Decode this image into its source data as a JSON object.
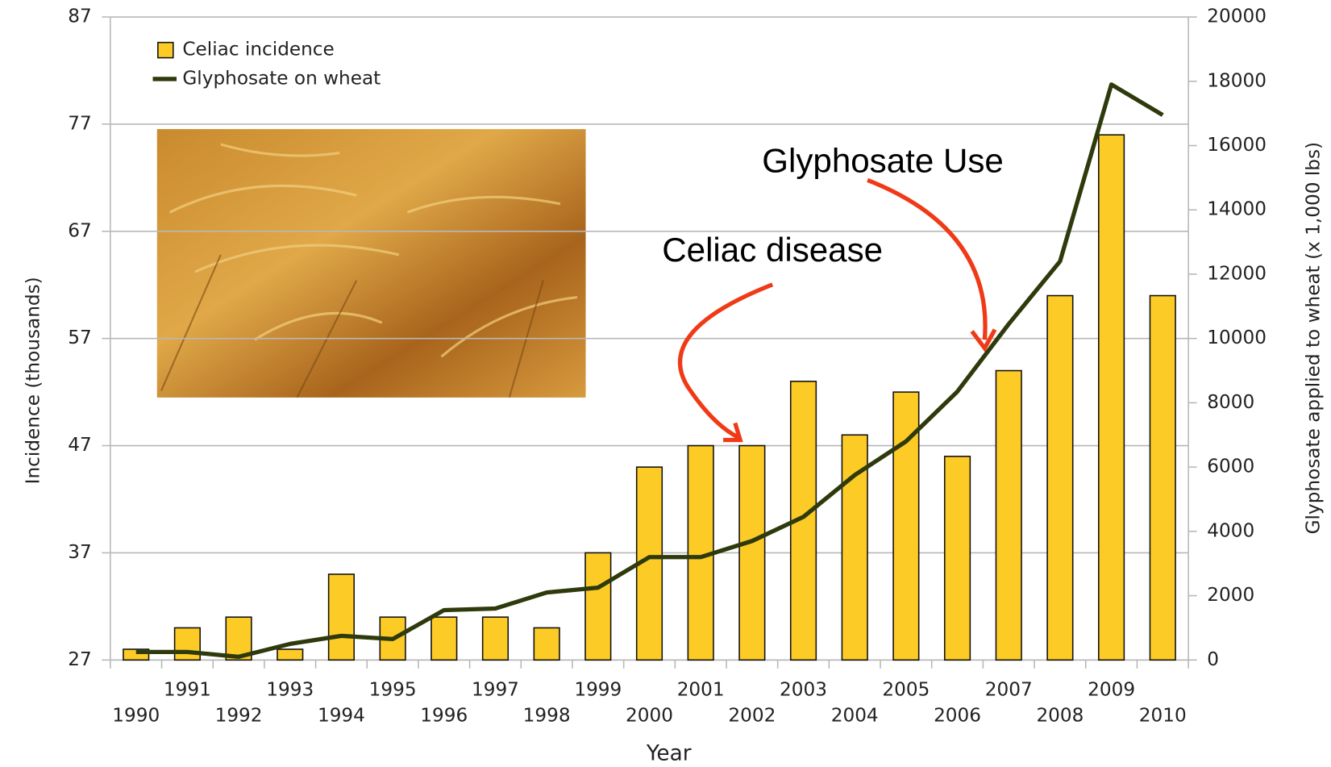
{
  "chart_data": {
    "type": "bar",
    "x_label": "Year",
    "y_label": "Incidence (thousands)",
    "y2_label": "Glyphosate applied to wheat (x 1,000 lbs)",
    "categories": [
      "1990",
      "1991",
      "1992",
      "1993",
      "1994",
      "1995",
      "1996",
      "1997",
      "1998",
      "1999",
      "2000",
      "2001",
      "2002",
      "2003",
      "2004",
      "2005",
      "2006",
      "2007",
      "2008",
      "2009",
      "2010"
    ],
    "series": [
      {
        "name": "Celiac incidence",
        "type": "bar",
        "color": "#fdcb25",
        "values": [
          28,
          30,
          31,
          28,
          35,
          31,
          31,
          31,
          30,
          37,
          45,
          47,
          47,
          53,
          48,
          52,
          46,
          54,
          61,
          76,
          61
        ]
      },
      {
        "name": "Glyphosate on wheat",
        "type": "line",
        "axis": "y2",
        "color": "#2e3a0c",
        "values": [
          250,
          250,
          100,
          500,
          750,
          650,
          1550,
          1600,
          2100,
          2250,
          3200,
          3200,
          3700,
          4450,
          5750,
          6800,
          8350,
          10450,
          12400,
          17900,
          16950
        ]
      }
    ],
    "ylim": [
      27,
      87
    ],
    "yticks": [
      27,
      37,
      47,
      57,
      67,
      77,
      87
    ],
    "y2lim": [
      0,
      20000
    ],
    "y2ticks": [
      0,
      2000,
      4000,
      6000,
      8000,
      10000,
      12000,
      14000,
      16000,
      18000,
      20000
    ],
    "grid": true,
    "legend": "upper left",
    "annotations": [
      {
        "text": "Glyphosate Use"
      },
      {
        "text": "Celiac disease"
      }
    ]
  }
}
